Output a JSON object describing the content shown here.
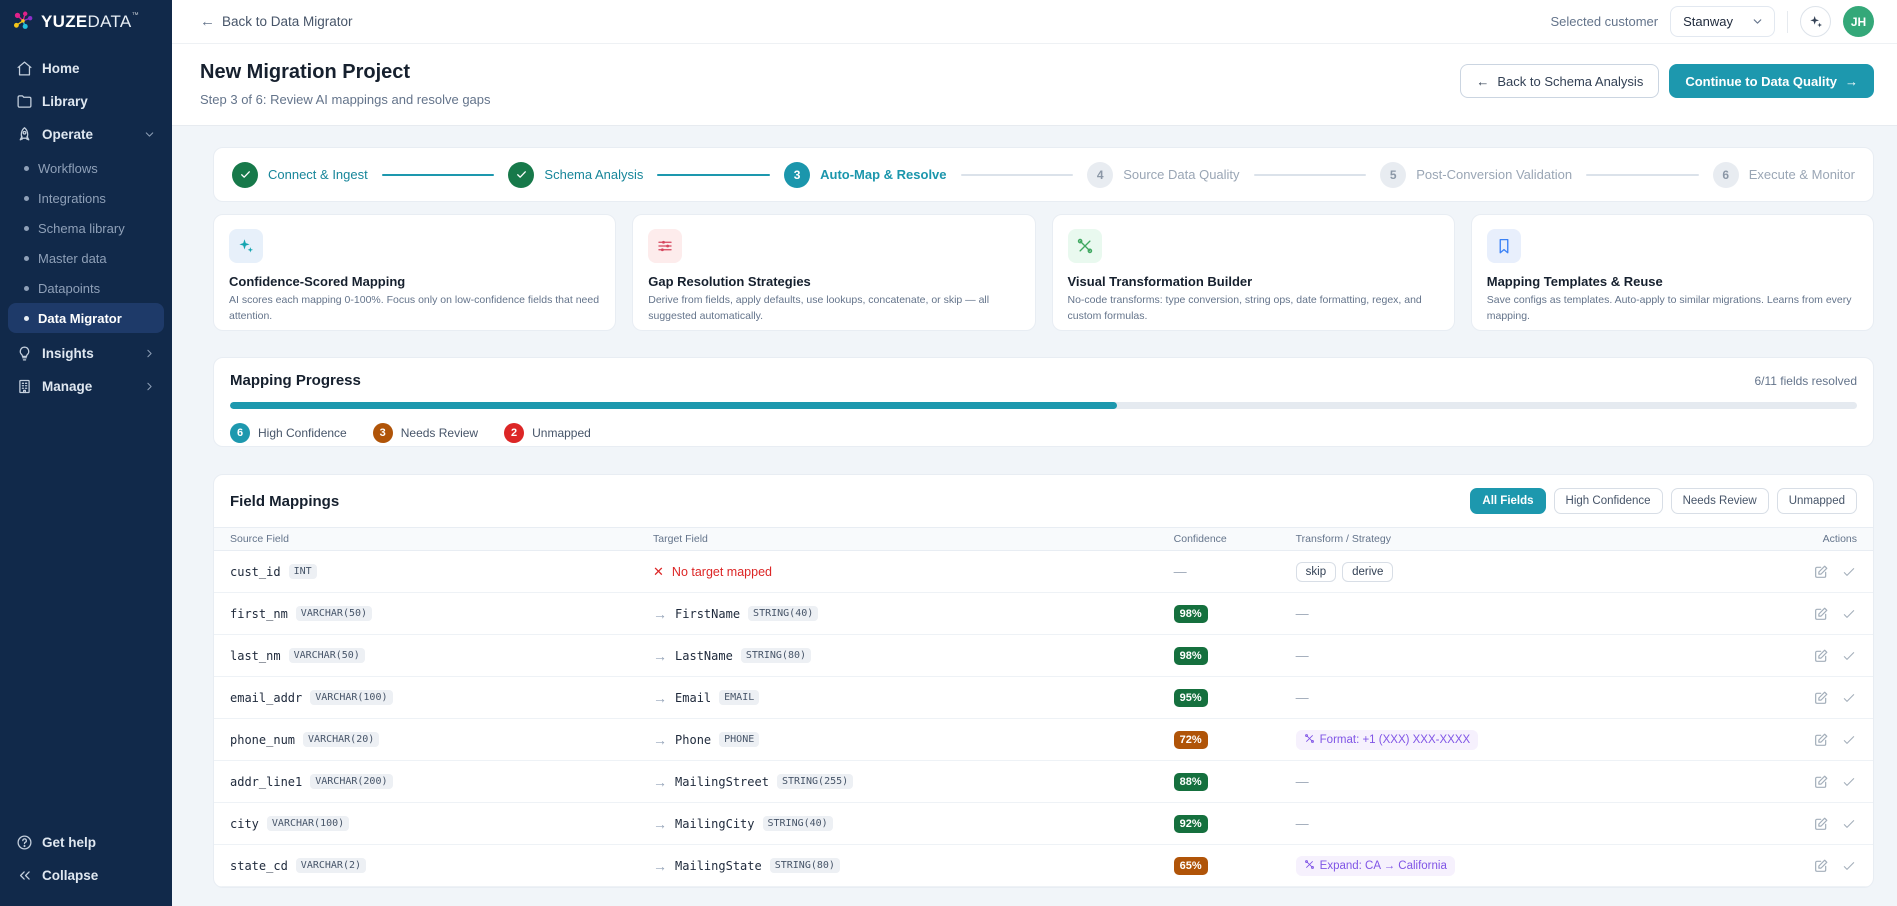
{
  "brand": {
    "name_bold": "YUZE",
    "name_light": "DATA",
    "mark": "™"
  },
  "icons": {
    "arrow_left": "←",
    "arrow_right": "→",
    "cross": "✕"
  },
  "ui": {
    "empty_value": "—"
  },
  "colors": {
    "accent_teal": "#1d98ae",
    "step_done_green": "#17794a",
    "confidence_high_bg": "#15703e",
    "confidence_mid_bg": "#b05408",
    "needs_review_orange": "#b05408",
    "unmapped_red": "#dc2626",
    "transform_purple": "#8055e6",
    "sidebar_bg": "#11294a",
    "avatar_green": "#34a879"
  },
  "sidebar": {
    "main": [
      {
        "label": "Home",
        "icon": "home"
      },
      {
        "label": "Library",
        "icon": "folder"
      },
      {
        "label": "Operate",
        "icon": "rocket",
        "chevron": "down"
      }
    ],
    "sub": [
      {
        "label": "Workflows",
        "active": false
      },
      {
        "label": "Integrations",
        "active": false
      },
      {
        "label": "Schema library",
        "active": false
      },
      {
        "label": "Master data",
        "active": false
      },
      {
        "label": "Datapoints",
        "active": false
      },
      {
        "label": "Data Migrator",
        "active": true
      }
    ],
    "groups": [
      {
        "label": "Insights",
        "icon": "bulb",
        "chevron": "right"
      },
      {
        "label": "Manage",
        "icon": "building",
        "chevron": "right"
      }
    ],
    "footer": [
      {
        "label": "Get help",
        "icon": "help"
      },
      {
        "label": "Collapse",
        "icon": "collapse"
      }
    ]
  },
  "topbar": {
    "back_link": "Back to Data Migrator",
    "selected_customer_label": "Selected customer",
    "customer_value": "Stanway",
    "avatar_initials": "JH"
  },
  "header": {
    "title": "New Migration Project",
    "subtitle": "Step 3 of 6: Review AI mappings and resolve gaps",
    "back_button": "Back to Schema Analysis",
    "continue_button": "Continue to Data Quality"
  },
  "stepper": {
    "steps": [
      {
        "num": "1",
        "label": "Connect & Ingest",
        "state": "done"
      },
      {
        "num": "2",
        "label": "Schema Analysis",
        "state": "done"
      },
      {
        "num": "3",
        "label": "Auto-Map & Resolve",
        "state": "active"
      },
      {
        "num": "4",
        "label": "Source Data Quality",
        "state": "todo"
      },
      {
        "num": "5",
        "label": "Post-Conversion Validation",
        "state": "todo"
      },
      {
        "num": "6",
        "label": "Execute & Monitor",
        "state": "todo"
      }
    ]
  },
  "feature_cards": [
    {
      "icon": "sparkles",
      "icon_color": "#14a5b0",
      "icon_bg": "#e7f0fa",
      "title": "Confidence-Scored Mapping",
      "desc": "AI scores each mapping 0-100%. Focus only on low-confidence fields that need attention."
    },
    {
      "icon": "sliders",
      "icon_color": "#d6455d",
      "icon_bg": "#fdecec",
      "title": "Gap Resolution Strategies",
      "desc": "Derive from fields, apply defaults, use lookups, concatenate, or skip — all suggested automatically."
    },
    {
      "icon": "tools",
      "icon_color": "#3fa860",
      "icon_bg": "#e9f9ef",
      "title": "Visual Transformation Builder",
      "desc": "No-code transforms: type conversion, string ops, date formatting, regex, and custom formulas."
    },
    {
      "icon": "bookmark",
      "icon_color": "#3b82f6",
      "icon_bg": "#e8effc",
      "title": "Mapping Templates & Reuse",
      "desc": "Save configs as templates. Auto-apply to similar migrations. Learns from every mapping."
    }
  ],
  "progress": {
    "title": "Mapping Progress",
    "resolved_text": "6/11 fields resolved",
    "percent": 54.5,
    "badges": [
      {
        "count": "6",
        "label": "High Confidence",
        "color": "#1d98ae"
      },
      {
        "count": "3",
        "label": "Needs Review",
        "color": "#b05408"
      },
      {
        "count": "2",
        "label": "Unmapped",
        "color": "#dc2626"
      }
    ]
  },
  "field_mappings": {
    "title": "Field Mappings",
    "filters": [
      {
        "label": "All Fields",
        "active": true
      },
      {
        "label": "High Confidence",
        "active": false
      },
      {
        "label": "Needs Review",
        "active": false
      },
      {
        "label": "Unmapped",
        "active": false
      }
    ],
    "columns": [
      "Source Field",
      "Target Field",
      "Confidence",
      "Transform / Strategy",
      "Actions"
    ],
    "rows": [
      {
        "source": "cust_id",
        "source_type": "INT",
        "unmapped": true,
        "target_error": "No target mapped",
        "confidence": null,
        "transform": {
          "type": "chips",
          "chips": [
            "skip",
            "derive"
          ]
        }
      },
      {
        "source": "first_nm",
        "source_type": "VARCHAR(50)",
        "target": "FirstName",
        "target_type": "STRING(40)",
        "confidence": {
          "value": "98%",
          "level": "high"
        },
        "transform": {
          "type": "none"
        }
      },
      {
        "source": "last_nm",
        "source_type": "VARCHAR(50)",
        "target": "LastName",
        "target_type": "STRING(80)",
        "confidence": {
          "value": "98%",
          "level": "high"
        },
        "transform": {
          "type": "none"
        }
      },
      {
        "source": "email_addr",
        "source_type": "VARCHAR(100)",
        "target": "Email",
        "target_type": "EMAIL",
        "confidence": {
          "value": "95%",
          "level": "high"
        },
        "transform": {
          "type": "none"
        }
      },
      {
        "source": "phone_num",
        "source_type": "VARCHAR(20)",
        "target": "Phone",
        "target_type": "PHONE",
        "confidence": {
          "value": "72%",
          "level": "mid"
        },
        "transform": {
          "type": "purple",
          "text": "Format: +1 (XXX) XXX-XXXX"
        }
      },
      {
        "source": "addr_line1",
        "source_type": "VARCHAR(200)",
        "target": "MailingStreet",
        "target_type": "STRING(255)",
        "confidence": {
          "value": "88%",
          "level": "high"
        },
        "transform": {
          "type": "none"
        }
      },
      {
        "source": "city",
        "source_type": "VARCHAR(100)",
        "target": "MailingCity",
        "target_type": "STRING(40)",
        "confidence": {
          "value": "92%",
          "level": "high"
        },
        "transform": {
          "type": "none"
        }
      },
      {
        "source": "state_cd",
        "source_type": "VARCHAR(2)",
        "target": "MailingState",
        "target_type": "STRING(80)",
        "confidence": {
          "value": "65%",
          "level": "mid"
        },
        "transform": {
          "type": "purple",
          "text": "Expand: CA → California"
        }
      }
    ]
  }
}
